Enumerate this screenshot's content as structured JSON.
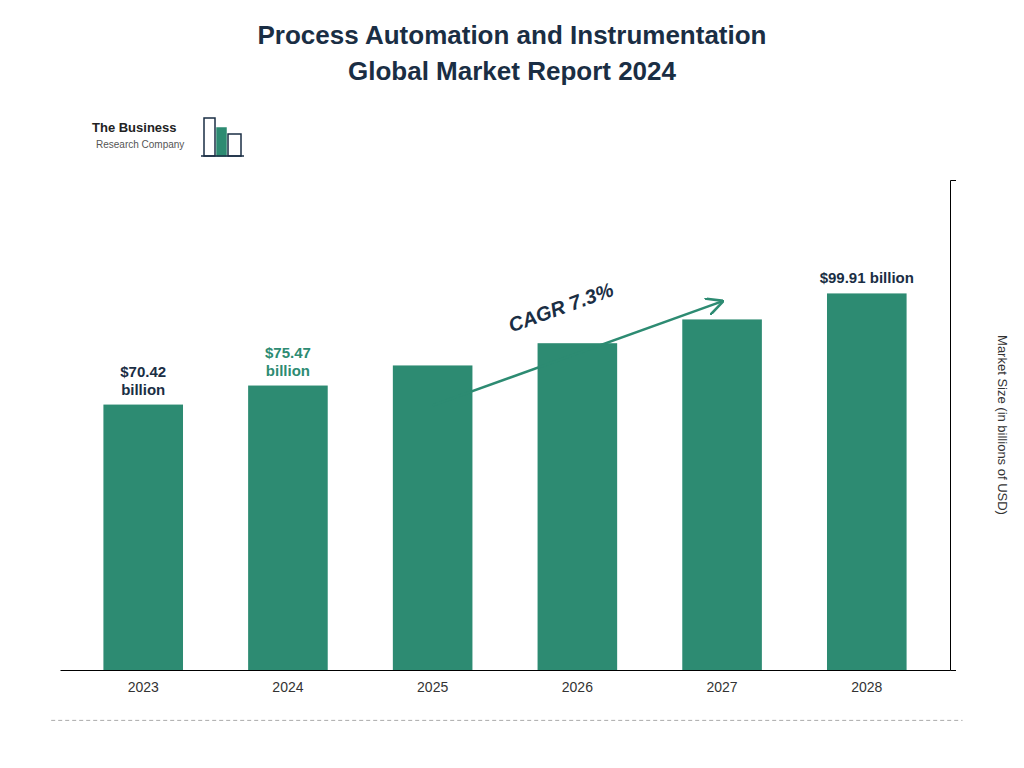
{
  "chart_data": {
    "type": "bar",
    "title": "Process Automation and Instrumentation",
    "subtitle": "Global Market Report 2024",
    "categories": [
      "2023",
      "2024",
      "2025",
      "2026",
      "2027",
      "2028"
    ],
    "values": [
      70.42,
      75.47,
      80.8,
      86.7,
      93.01,
      99.91
    ],
    "color": "#2d8b72",
    "ylabel": "Market Size (in billions of USD)",
    "ylim": [
      0,
      130
    ],
    "grid": false,
    "tick_labels": "x",
    "annotations": [
      {
        "text": "$70.42\nbillion",
        "category": "2023",
        "color": "#1a2e44"
      },
      {
        "text": "$75.47\nbillion",
        "category": "2024",
        "color": "#2d8b72"
      },
      {
        "text": "$99.91 billion",
        "category": "2028",
        "color": "#1a2e44"
      },
      {
        "text": "CAGR 7.3%",
        "from": "2025",
        "to": "2027",
        "color": "#1a2e44"
      },
      {
        "text": "The Business",
        "color": "#222222"
      },
      {
        "text": "Research Company",
        "color": "#555555"
      }
    ]
  }
}
